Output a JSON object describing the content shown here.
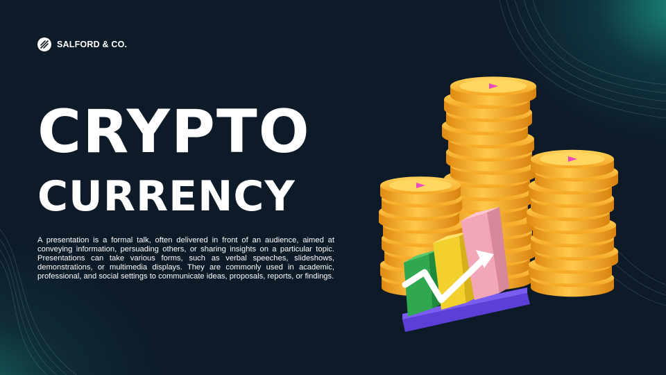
{
  "brand": {
    "name": "SALFORD & CO.",
    "logo_icon": "chart-stripes-icon"
  },
  "title": {
    "line1": "CRYPTO",
    "line2": "CURRENCY"
  },
  "body": "A presentation is a formal talk, often delivered in front of an audience, aimed at conveying information, persuading others, or sharing insights on a particular topic. Presentations can take various forms, such as verbal speeches, slideshows, demonstrations, or multimedia displays. They are commonly used in academic, professional, and social settings to communicate ideas, proposals, reports, or findings.",
  "colors": {
    "background": "#0d1a28",
    "accent_teal": "#1ea896",
    "coin_gold": "#f7b733",
    "bar_green": "#2fa84f",
    "bar_yellow": "#f2d12e",
    "bar_pink": "#f2a7b8",
    "base_purple": "#6a4ce0"
  }
}
